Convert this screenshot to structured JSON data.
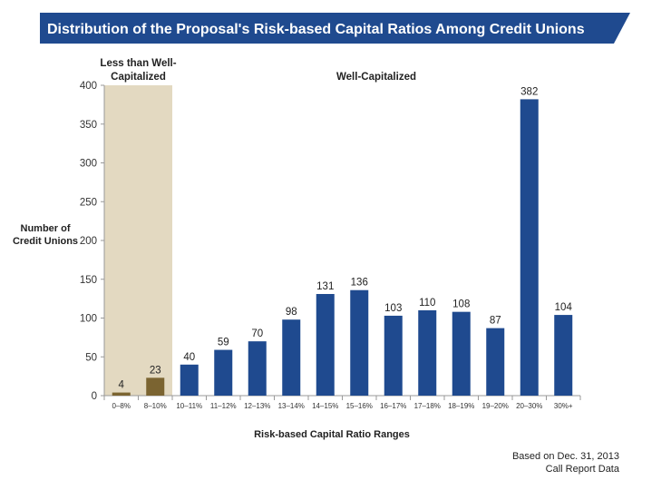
{
  "chart_data": {
    "type": "bar",
    "title": "Distribution of the Proposal's Risk-based Capital Ratios Among Credit Unions",
    "xlabel": "Risk-based Capital Ratio Ranges",
    "ylabel": [
      "Number of",
      "Credit Unions"
    ],
    "categories": [
      "0–8%",
      "8–10%",
      "10–11%",
      "11–12%",
      "12–13%",
      "13–14%",
      "14–15%",
      "15–16%",
      "16–17%",
      "17–18%",
      "18–19%",
      "19–20%",
      "20–30%",
      "30%+"
    ],
    "values": [
      4,
      23,
      40,
      59,
      70,
      98,
      131,
      136,
      103,
      110,
      108,
      87,
      382,
      104
    ],
    "ylim": [
      0,
      400
    ],
    "yticks": [
      0,
      50,
      100,
      150,
      200,
      250,
      300,
      350,
      400
    ],
    "grid": false,
    "regions": [
      {
        "label_lines": [
          "Less than Well-",
          "Capitalized"
        ],
        "categories": [
          "0–8%",
          "8–10%"
        ],
        "color": "#e3d9c1",
        "bar_color": "#7b6431"
      },
      {
        "label_lines": [
          "Well-Capitalized"
        ],
        "categories": [
          "10–11%",
          "11–12%",
          "12–13%",
          "13–14%",
          "14–15%",
          "15–16%",
          "16–17%",
          "17–18%",
          "18–19%",
          "19–20%",
          "20–30%",
          "30%+"
        ],
        "bar_color": "#1f4a8f"
      }
    ],
    "title_banner_color": "#1f4a8f",
    "footnote": [
      "Based on Dec. 31, 2013",
      "Call Report Data"
    ]
  }
}
